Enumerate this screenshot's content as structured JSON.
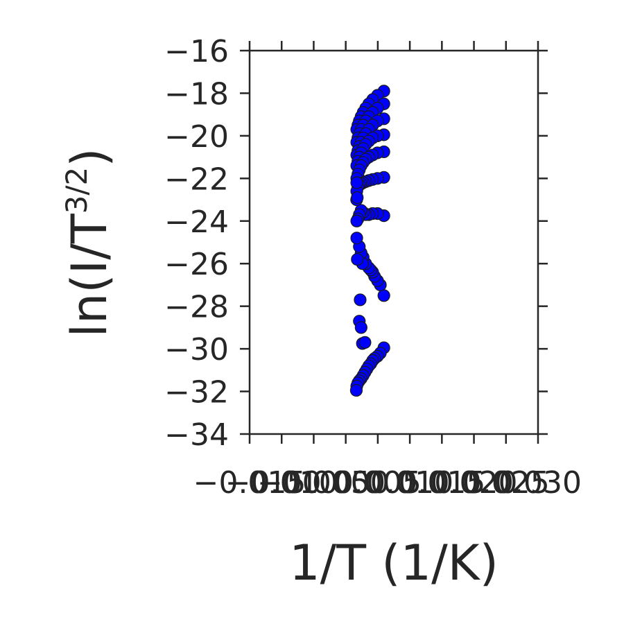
{
  "chart_data": {
    "type": "scatter",
    "title": "",
    "xlabel": "1/T (1/K)",
    "ylabel": {
      "prefix": "ln(I/T",
      "superscript": "3/2",
      "suffix": ")"
    },
    "xlim": [
      -0.015,
      0.03
    ],
    "ylim": [
      -34,
      -16
    ],
    "xticks": [
      -0.015,
      -0.01,
      -0.005,
      0.0,
      0.005,
      0.01,
      0.015,
      0.02,
      0.025,
      0.03
    ],
    "xtick_labels": [
      "−0.015",
      "−0.010",
      "−0.005",
      "0.000",
      "0.005",
      "0.010",
      "0.015",
      "0.020",
      "0.025",
      "0.030"
    ],
    "yticks": [
      -16,
      -18,
      -20,
      -22,
      -24,
      -26,
      -28,
      -30,
      -32,
      -34
    ],
    "ytick_labels": [
      "−16",
      "−18",
      "−20",
      "−22",
      "−24",
      "−26",
      "−28",
      "−30",
      "−32",
      "−34"
    ],
    "grid": false,
    "marker_color": "#0000ff",
    "marker_edge_color": "#1a1a1a",
    "axis_color": "#262626",
    "series": [
      {
        "values": [
          {
            "x": 0.00595,
            "y": -17.9
          },
          {
            "x": 0.00495,
            "y": -18.1
          },
          {
            "x": 0.0042,
            "y": -18.3
          },
          {
            "x": 0.0036,
            "y": -18.5
          },
          {
            "x": 0.00312,
            "y": -18.7
          },
          {
            "x": 0.00272,
            "y": -18.9
          },
          {
            "x": 0.0024,
            "y": -19.1
          },
          {
            "x": 0.00212,
            "y": -19.3
          },
          {
            "x": 0.0019,
            "y": -19.5
          },
          {
            "x": 0.00172,
            "y": -19.7
          },
          {
            "x": 0.00595,
            "y": -18.5
          },
          {
            "x": 0.00495,
            "y": -18.7
          },
          {
            "x": 0.0042,
            "y": -18.9
          },
          {
            "x": 0.0036,
            "y": -19.1
          },
          {
            "x": 0.00312,
            "y": -19.3
          },
          {
            "x": 0.00272,
            "y": -19.5
          },
          {
            "x": 0.0024,
            "y": -19.7
          },
          {
            "x": 0.00212,
            "y": -19.9
          },
          {
            "x": 0.0019,
            "y": -20.1
          },
          {
            "x": 0.00172,
            "y": -20.3
          },
          {
            "x": 0.00595,
            "y": -19.2
          },
          {
            "x": 0.00495,
            "y": -19.3
          },
          {
            "x": 0.0042,
            "y": -19.5
          },
          {
            "x": 0.0036,
            "y": -19.7
          },
          {
            "x": 0.00312,
            "y": -19.9
          },
          {
            "x": 0.00272,
            "y": -20.1
          },
          {
            "x": 0.0024,
            "y": -20.3
          },
          {
            "x": 0.00212,
            "y": -20.5
          },
          {
            "x": 0.0019,
            "y": -20.7
          },
          {
            "x": 0.00172,
            "y": -20.9
          },
          {
            "x": 0.00595,
            "y": -19.95
          },
          {
            "x": 0.00495,
            "y": -20.0
          },
          {
            "x": 0.0042,
            "y": -20.1
          },
          {
            "x": 0.0036,
            "y": -20.25
          },
          {
            "x": 0.00312,
            "y": -20.4
          },
          {
            "x": 0.00272,
            "y": -20.6
          },
          {
            "x": 0.0024,
            "y": -20.8
          },
          {
            "x": 0.00212,
            "y": -21.0
          },
          {
            "x": 0.0019,
            "y": -21.2
          },
          {
            "x": 0.00172,
            "y": -21.4
          },
          {
            "x": 0.00595,
            "y": -20.75
          },
          {
            "x": 0.00495,
            "y": -20.8
          },
          {
            "x": 0.0042,
            "y": -20.9
          },
          {
            "x": 0.0036,
            "y": -21.0
          },
          {
            "x": 0.00312,
            "y": -21.1
          },
          {
            "x": 0.00272,
            "y": -21.25
          },
          {
            "x": 0.0024,
            "y": -21.4
          },
          {
            "x": 0.00212,
            "y": -21.6
          },
          {
            "x": 0.0019,
            "y": -21.8
          },
          {
            "x": 0.00172,
            "y": -22.0
          },
          {
            "x": 0.00595,
            "y": -21.95
          },
          {
            "x": 0.00495,
            "y": -22.0
          },
          {
            "x": 0.0042,
            "y": -22.05
          },
          {
            "x": 0.0036,
            "y": -22.1
          },
          {
            "x": 0.00312,
            "y": -22.15
          },
          {
            "x": 0.00272,
            "y": -22.2
          },
          {
            "x": 0.0024,
            "y": -22.25
          },
          {
            "x": 0.00212,
            "y": -22.3
          },
          {
            "x": 0.0019,
            "y": -22.4
          },
          {
            "x": 0.00172,
            "y": -22.6
          },
          {
            "x": 0.00595,
            "y": -23.75
          },
          {
            "x": 0.00495,
            "y": -23.65
          },
          {
            "x": 0.0042,
            "y": -23.65
          },
          {
            "x": 0.0036,
            "y": -23.7
          },
          {
            "x": 0.00312,
            "y": -23.7
          },
          {
            "x": 0.00272,
            "y": -23.6
          },
          {
            "x": 0.0024,
            "y": -23.5
          },
          {
            "x": 0.00212,
            "y": -23.7
          },
          {
            "x": 0.0019,
            "y": -23.9
          },
          {
            "x": 0.00172,
            "y": -24.0
          },
          {
            "x": 0.00595,
            "y": -27.5
          },
          {
            "x": 0.0054,
            "y": -27.0
          },
          {
            "x": 0.00495,
            "y": -26.8
          },
          {
            "x": 0.0045,
            "y": -26.6
          },
          {
            "x": 0.0042,
            "y": -26.4
          },
          {
            "x": 0.0039,
            "y": -26.3
          },
          {
            "x": 0.0036,
            "y": -26.2
          },
          {
            "x": 0.00312,
            "y": -26.0
          },
          {
            "x": 0.00272,
            "y": -25.7
          },
          {
            "x": 0.0024,
            "y": -25.5
          },
          {
            "x": 0.00212,
            "y": -25.2
          },
          {
            "x": 0.00172,
            "y": -24.8
          },
          {
            "x": 0.0026,
            "y": -26.0
          },
          {
            "x": 0.0018,
            "y": -25.8
          },
          {
            "x": 0.0017,
            "y": -23.0
          },
          {
            "x": 0.0018,
            "y": -22.9
          },
          {
            "x": 0.00172,
            "y": -22.2
          },
          {
            "x": 0.00225,
            "y": -27.7
          },
          {
            "x": 0.00212,
            "y": -28.7
          },
          {
            "x": 0.0024,
            "y": -29.0
          },
          {
            "x": 0.0026,
            "y": -29.75
          },
          {
            "x": 0.003,
            "y": -29.7
          },
          {
            "x": 0.00595,
            "y": -29.95
          },
          {
            "x": 0.0054,
            "y": -30.2
          },
          {
            "x": 0.00495,
            "y": -30.35
          },
          {
            "x": 0.0045,
            "y": -30.45
          },
          {
            "x": 0.0042,
            "y": -30.55
          },
          {
            "x": 0.0039,
            "y": -30.7
          },
          {
            "x": 0.0036,
            "y": -30.8
          },
          {
            "x": 0.0033,
            "y": -30.95
          },
          {
            "x": 0.003,
            "y": -31.1
          },
          {
            "x": 0.00272,
            "y": -31.25
          },
          {
            "x": 0.0024,
            "y": -31.4
          },
          {
            "x": 0.00212,
            "y": -31.5
          },
          {
            "x": 0.0019,
            "y": -31.6
          },
          {
            "x": 0.00172,
            "y": -31.75
          },
          {
            "x": 0.00165,
            "y": -31.95
          }
        ]
      }
    ]
  }
}
